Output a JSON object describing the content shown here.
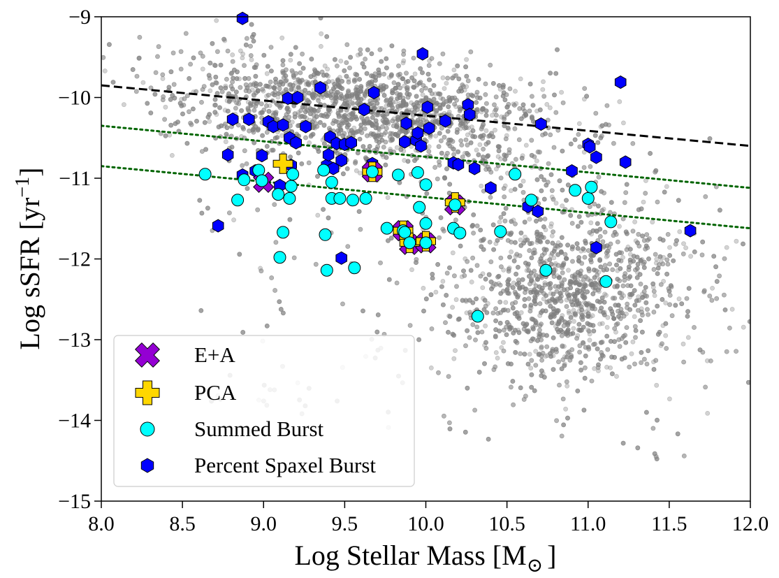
{
  "chart_data": {
    "type": "scatter",
    "title": "",
    "xlabel": "Log Stellar Mass [M",
    "xlabel_sub": "⊙",
    "xlabel_end": "]",
    "ylabel": "Log sSFR [yr",
    "ylabel_sup": "−1",
    "ylabel_end": "]",
    "xlim": [
      8.0,
      12.0
    ],
    "ylim": [
      -15,
      -9
    ],
    "xticks": [
      8.0,
      8.5,
      9.0,
      9.5,
      10.0,
      10.5,
      11.0,
      11.5,
      12.0
    ],
    "xtick_labels": [
      "8.0",
      "8.5",
      "9.0",
      "9.5",
      "10.0",
      "10.5",
      "11.0",
      "11.5",
      "12.0"
    ],
    "yticks": [
      -9,
      -10,
      -11,
      -12,
      -13,
      -14,
      -15
    ],
    "ytick_labels": [
      "−9",
      "−10",
      "−11",
      "−12",
      "−13",
      "−14",
      "−15"
    ],
    "legend_position": "lower-left",
    "legend": [
      {
        "label": "E+A",
        "marker": "x-filled",
        "color": "#9400d3"
      },
      {
        "label": "PCA",
        "marker": "plus-filled",
        "color": "#ffd700"
      },
      {
        "label": "Summed Burst",
        "marker": "circle",
        "color": "#00ffff"
      },
      {
        "label": "Percent Spaxel Burst",
        "marker": "hexagon",
        "color": "#0000ff"
      }
    ],
    "reference_lines": [
      {
        "name": "main-sequence",
        "style": "dashed",
        "color": "#000000",
        "x": [
          8.0,
          12.0
        ],
        "y": [
          -9.85,
          -10.6
        ]
      },
      {
        "name": "green-valley-upper",
        "style": "dotted",
        "color": "#006400",
        "x": [
          8.0,
          12.0
        ],
        "y": [
          -10.35,
          -11.12
        ]
      },
      {
        "name": "green-valley-lower",
        "style": "dotted",
        "color": "#006400",
        "x": [
          8.0,
          12.0
        ],
        "y": [
          -10.85,
          -11.62
        ]
      }
    ],
    "background_population": {
      "name": "All galaxies",
      "color": "#808080",
      "alpha": 0.35,
      "approx_count": 6000
    },
    "series": [
      {
        "name": "E+A",
        "x": [
          9.0,
          9.67,
          9.86,
          9.9,
          10.0,
          10.18
        ],
        "y": [
          -11.05,
          -10.92,
          -11.65,
          -11.82,
          -11.8,
          -11.33
        ]
      },
      {
        "name": "PCA",
        "x": [
          9.12,
          9.67,
          9.86,
          9.9,
          10.0,
          10.18
        ],
        "y": [
          -10.82,
          -10.92,
          -11.65,
          -11.8,
          -11.78,
          -11.3
        ]
      },
      {
        "name": "Summed Burst",
        "x": [
          8.64,
          8.84,
          8.88,
          8.97,
          8.99,
          9.09,
          9.1,
          9.12,
          9.16,
          9.17,
          9.18,
          9.37,
          9.38,
          9.39,
          9.42,
          9.42,
          9.47,
          9.55,
          9.56,
          9.63,
          9.67,
          9.76,
          9.83,
          9.86,
          9.87,
          9.9,
          9.95,
          9.96,
          10.0,
          10.0,
          10.0,
          10.17,
          10.18,
          10.21,
          10.32,
          10.46,
          10.55,
          10.65,
          10.74,
          10.92,
          11.0,
          11.02,
          11.11,
          11.14
        ],
        "y": [
          -10.95,
          -11.27,
          -11.02,
          -10.9,
          -11.03,
          -11.2,
          -11.98,
          -11.67,
          -11.25,
          -11.1,
          -10.95,
          -10.9,
          -11.7,
          -12.14,
          -11.05,
          -11.25,
          -11.25,
          -11.27,
          -12.11,
          -11.25,
          -10.92,
          -11.62,
          -10.96,
          -11.65,
          -11.67,
          -11.8,
          -10.93,
          -11.36,
          -11.56,
          -11.08,
          -11.8,
          -11.62,
          -11.33,
          -11.68,
          -12.71,
          -11.66,
          -10.95,
          -11.27,
          -12.14,
          -11.15,
          -11.25,
          -11.11,
          -12.28,
          -11.54
        ]
      },
      {
        "name": "Percent Spaxel Burst",
        "x": [
          8.72,
          8.78,
          8.81,
          8.87,
          8.91,
          8.95,
          8.99,
          9.03,
          9.06,
          9.1,
          9.12,
          9.15,
          9.16,
          9.17,
          9.2,
          9.21,
          9.26,
          9.35,
          9.39,
          9.4,
          9.41,
          9.43,
          9.45,
          9.48,
          9.5,
          9.54,
          9.62,
          9.67,
          9.68,
          9.87,
          9.88,
          9.94,
          9.95,
          9.97,
          9.98,
          10.01,
          10.02,
          10.12,
          10.17,
          10.2,
          10.26,
          10.27,
          10.3,
          10.4,
          10.63,
          10.69,
          10.71,
          10.9,
          11.0,
          11.01,
          11.05,
          11.05,
          11.2,
          11.23,
          11.63,
          8.87,
          9.48
        ],
        "y": [
          -11.59,
          -10.71,
          -10.27,
          -10.96,
          -10.27,
          -10.91,
          -10.72,
          -10.3,
          -10.36,
          -11.09,
          -10.34,
          -10.01,
          -10.5,
          -10.84,
          -10.56,
          -10.0,
          -10.36,
          -9.88,
          -10.84,
          -10.71,
          -10.49,
          -10.88,
          -10.57,
          -10.78,
          -10.58,
          -10.56,
          -10.15,
          -10.82,
          -9.94,
          -10.55,
          -10.32,
          -10.53,
          -10.44,
          -10.6,
          -9.46,
          -10.12,
          -10.38,
          -10.29,
          -10.81,
          -10.83,
          -10.09,
          -10.21,
          -10.88,
          -11.12,
          -11.35,
          -11.41,
          -10.33,
          -10.91,
          -10.58,
          -10.61,
          -10.74,
          -11.86,
          -9.81,
          -10.8,
          -11.65,
          -9.02,
          -11.99
        ]
      }
    ]
  }
}
